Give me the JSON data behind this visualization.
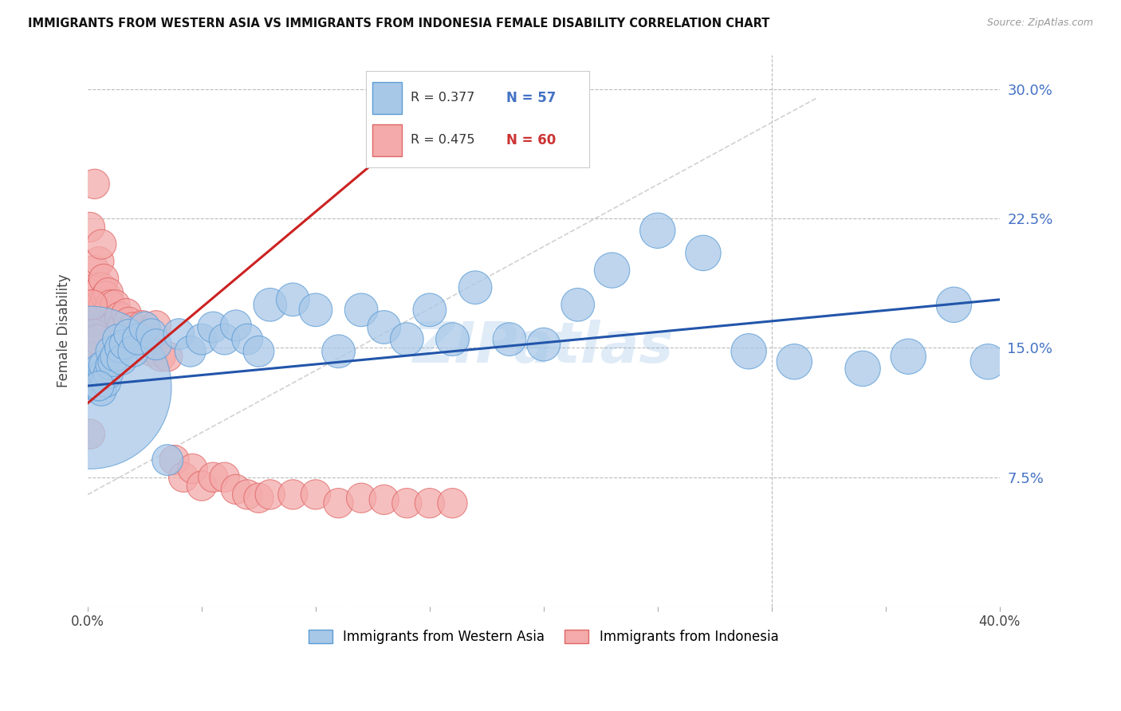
{
  "title": "IMMIGRANTS FROM WESTERN ASIA VS IMMIGRANTS FROM INDONESIA FEMALE DISABILITY CORRELATION CHART",
  "source": "Source: ZipAtlas.com",
  "ylabel": "Female Disability",
  "xlim": [
    0.0,
    0.4
  ],
  "ylim": [
    0.0,
    0.32
  ],
  "xticks": [
    0.0,
    0.05,
    0.1,
    0.15,
    0.2,
    0.25,
    0.3,
    0.35,
    0.4
  ],
  "xtick_labels": [
    "0.0%",
    "",
    "",
    "",
    "",
    "",
    "",
    "",
    "40.0%"
  ],
  "yticks_right": [
    0.0,
    0.075,
    0.15,
    0.225,
    0.3
  ],
  "ytick_labels_right": [
    "",
    "7.5%",
    "15.0%",
    "22.5%",
    "30.0%"
  ],
  "series1_name": "Immigrants from Western Asia",
  "series1_R": 0.377,
  "series1_N": 57,
  "series1_color": "#a8c8e8",
  "series1_color_edge": "#5b9bd5",
  "series1_color_dark": "#4472c4",
  "series2_name": "Immigrants from Indonesia",
  "series2_R": 0.475,
  "series2_N": 60,
  "series2_color": "#f4aaaa",
  "series2_color_edge": "#e06666",
  "series2_color_dark": "#cc3333",
  "watermark": "ZIPatlas",
  "background_color": "#ffffff",
  "grid_color": "#bbbbbb",
  "trend_line1_color": "#2255aa",
  "trend_line2_color": "#cc2222",
  "series1_x": [
    0.001,
    0.002,
    0.003,
    0.004,
    0.005,
    0.005,
    0.006,
    0.007,
    0.007,
    0.008,
    0.009,
    0.01,
    0.01,
    0.011,
    0.012,
    0.013,
    0.014,
    0.015,
    0.016,
    0.018,
    0.02,
    0.022,
    0.025,
    0.028,
    0.03,
    0.035,
    0.04,
    0.045,
    0.05,
    0.055,
    0.06,
    0.065,
    0.07,
    0.075,
    0.08,
    0.09,
    0.1,
    0.11,
    0.12,
    0.13,
    0.14,
    0.15,
    0.16,
    0.17,
    0.185,
    0.2,
    0.215,
    0.23,
    0.25,
    0.27,
    0.29,
    0.31,
    0.34,
    0.36,
    0.38,
    0.395,
    0.005
  ],
  "series1_y": [
    0.127,
    0.13,
    0.132,
    0.128,
    0.133,
    0.138,
    0.125,
    0.135,
    0.14,
    0.13,
    0.135,
    0.14,
    0.148,
    0.142,
    0.145,
    0.155,
    0.15,
    0.143,
    0.152,
    0.158,
    0.148,
    0.155,
    0.162,
    0.158,
    0.152,
    0.085,
    0.158,
    0.148,
    0.155,
    0.162,
    0.155,
    0.163,
    0.155,
    0.148,
    0.175,
    0.178,
    0.172,
    0.148,
    0.172,
    0.162,
    0.155,
    0.172,
    0.155,
    0.185,
    0.155,
    0.152,
    0.175,
    0.195,
    0.218,
    0.205,
    0.148,
    0.142,
    0.138,
    0.145,
    0.175,
    0.142,
    0.128
  ],
  "series1_sizes": [
    1800,
    80,
    65,
    65,
    60,
    60,
    60,
    60,
    60,
    60,
    60,
    60,
    60,
    60,
    60,
    60,
    60,
    60,
    60,
    60,
    65,
    65,
    65,
    65,
    65,
    65,
    65,
    65,
    65,
    65,
    65,
    65,
    65,
    65,
    75,
    75,
    75,
    75,
    75,
    75,
    75,
    75,
    75,
    75,
    75,
    75,
    75,
    85,
    85,
    85,
    85,
    85,
    85,
    85,
    85,
    85,
    60
  ],
  "series2_x": [
    0.001,
    0.001,
    0.002,
    0.002,
    0.003,
    0.003,
    0.004,
    0.004,
    0.005,
    0.005,
    0.006,
    0.006,
    0.007,
    0.007,
    0.008,
    0.008,
    0.009,
    0.009,
    0.01,
    0.01,
    0.011,
    0.012,
    0.013,
    0.014,
    0.015,
    0.016,
    0.017,
    0.018,
    0.02,
    0.022,
    0.024,
    0.026,
    0.028,
    0.03,
    0.032,
    0.035,
    0.038,
    0.042,
    0.046,
    0.05,
    0.055,
    0.06,
    0.065,
    0.07,
    0.075,
    0.08,
    0.09,
    0.1,
    0.11,
    0.12,
    0.13,
    0.14,
    0.15,
    0.16,
    0.001,
    0.002,
    0.003,
    0.002,
    0.003,
    0.004
  ],
  "series2_y": [
    0.13,
    0.22,
    0.165,
    0.175,
    0.195,
    0.245,
    0.17,
    0.185,
    0.2,
    0.175,
    0.21,
    0.185,
    0.19,
    0.175,
    0.18,
    0.165,
    0.182,
    0.162,
    0.165,
    0.175,
    0.162,
    0.175,
    0.155,
    0.168,
    0.162,
    0.155,
    0.17,
    0.165,
    0.162,
    0.155,
    0.163,
    0.155,
    0.148,
    0.163,
    0.145,
    0.145,
    0.085,
    0.075,
    0.08,
    0.07,
    0.075,
    0.075,
    0.068,
    0.065,
    0.063,
    0.065,
    0.065,
    0.065,
    0.06,
    0.063,
    0.062,
    0.06,
    0.06,
    0.06,
    0.1,
    0.175,
    0.158,
    0.138,
    0.145,
    0.155
  ],
  "series2_sizes": [
    60,
    60,
    60,
    60,
    60,
    60,
    60,
    60,
    60,
    60,
    60,
    60,
    60,
    60,
    60,
    60,
    60,
    60,
    60,
    60,
    60,
    60,
    60,
    60,
    60,
    60,
    60,
    60,
    60,
    60,
    60,
    60,
    60,
    60,
    60,
    60,
    60,
    60,
    60,
    60,
    60,
    60,
    60,
    60,
    60,
    60,
    60,
    60,
    60,
    60,
    60,
    60,
    60,
    60,
    60,
    60,
    60,
    60,
    60,
    60
  ],
  "trend1_x0": 0.0,
  "trend1_x1": 0.4,
  "trend1_y0": 0.128,
  "trend1_y1": 0.178,
  "trend2_x0": 0.0,
  "trend2_x1": 0.155,
  "trend2_y0": 0.118,
  "trend2_y1": 0.29,
  "refline_x": [
    0.0,
    0.32
  ],
  "refline_y": [
    0.065,
    0.295
  ]
}
